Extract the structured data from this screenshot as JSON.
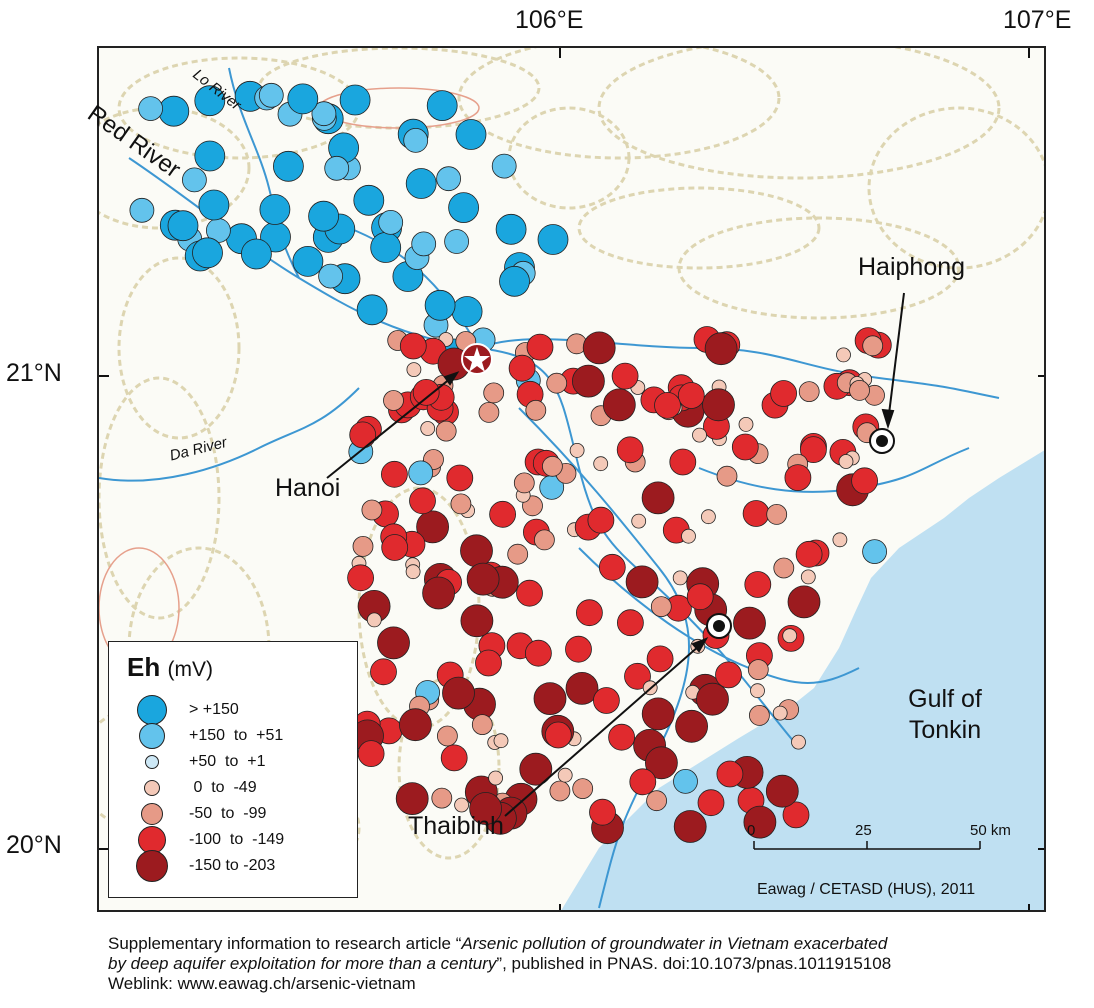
{
  "axes": {
    "longitude_labels": [
      "106°E",
      "107°E"
    ],
    "latitude_labels": [
      "21°N",
      "20°N"
    ]
  },
  "places": {
    "hanoi": "Hanoi",
    "haiphong": "Haiphong",
    "thaibinh": "Thaibinh",
    "gulf_line1": "Gulf of",
    "gulf_line2": "Tonkin"
  },
  "rivers": {
    "red": "Red River",
    "lo": "Lo River",
    "da": "Da River"
  },
  "legend": {
    "title_bold": "Eh",
    "title_unit": "(mV)",
    "items": [
      {
        "label": "> +150",
        "color": "#1aa6de"
      },
      {
        "label": "+150  to  +51",
        "color": "#63c3ec"
      },
      {
        "label": "+50  to  +1",
        "color": "#cde8f6"
      },
      {
        "label": " 0  to  -49",
        "color": "#f4c9b8"
      },
      {
        "label": "-50  to  -99",
        "color": "#e69a87"
      },
      {
        "label": "-100  to  -149",
        "color": "#e02a2e"
      },
      {
        "label": "-150 to -203",
        "color": "#9c1b1f"
      }
    ]
  },
  "scale_bar": {
    "ticks": [
      "0",
      "25",
      "50 km"
    ]
  },
  "credit": "Eawag / CETASD (HUS), 2011",
  "caption": {
    "line1_prefix": "Supplementary information to research article “",
    "line1_title": "Arsenic pollution of groundwater in Vietnam exacerbated",
    "line2_title": "by deep aquifer exploitation for more than a century",
    "line2_suffix": "”, published in PNAS. doi:10.1073/pnas.1011915108",
    "line3": "Weblink: www.eawag.ch/arsenic-vietnam"
  },
  "colors": {
    "sea": "#bfe0f2",
    "terrain": "#d8cfa6",
    "relief": "#e3917a",
    "river": "#3d97d2"
  }
}
